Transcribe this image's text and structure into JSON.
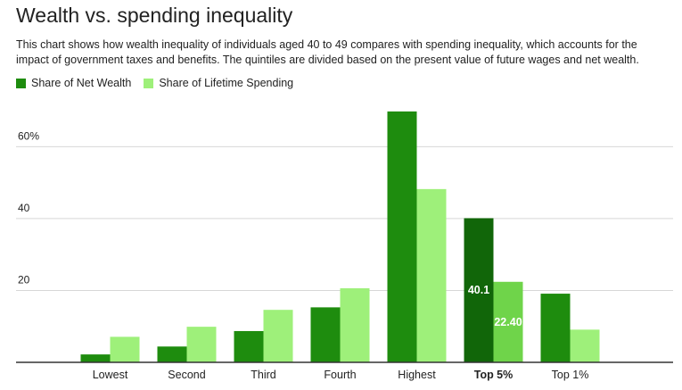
{
  "title": "Wealth vs. spending inequality",
  "subtitle": "This chart shows how wealth inequality of individuals aged 40 to 49 compares with spending inequality, which accounts for the impact of government taxes and benefits. The quintiles are divided based on the present value of future wages and net wealth.",
  "colors": {
    "wealth": "#1e8c0e",
    "spending": "#9ef07a",
    "wealth_highlight": "#116609",
    "spending_highlight": "#6fd44a",
    "grid": "#d7d7d7",
    "axis": "#333333"
  },
  "chart_data": {
    "type": "bar",
    "title": "Wealth vs. spending inequality",
    "categories": [
      "Lowest",
      "Second",
      "Third",
      "Fourth",
      "Highest",
      "Top 5%",
      "Top 1%"
    ],
    "highlight_category": "Top 5%",
    "series": [
      {
        "name": "Share of Net Wealth",
        "values": [
          2.2,
          4.4,
          8.7,
          15.3,
          69.8,
          40.1,
          19.1
        ]
      },
      {
        "name": "Share of Lifetime Spending",
        "values": [
          7.1,
          9.9,
          14.6,
          20.6,
          48.2,
          22.4,
          9.1
        ]
      }
    ],
    "data_labels": [
      {
        "category": "Top 5%",
        "series": "Share of Net Wealth",
        "text": "40.1"
      },
      {
        "category": "Top 5%",
        "series": "Share of Lifetime Spending",
        "text": "22.40"
      }
    ],
    "ylim": [
      0,
      72
    ],
    "yticks": [
      {
        "value": 20,
        "label": "20"
      },
      {
        "value": 40,
        "label": "40"
      },
      {
        "value": 60,
        "label": "60%"
      }
    ],
    "grid": true,
    "legend_position": "top-left",
    "xlabel": "",
    "ylabel": ""
  }
}
